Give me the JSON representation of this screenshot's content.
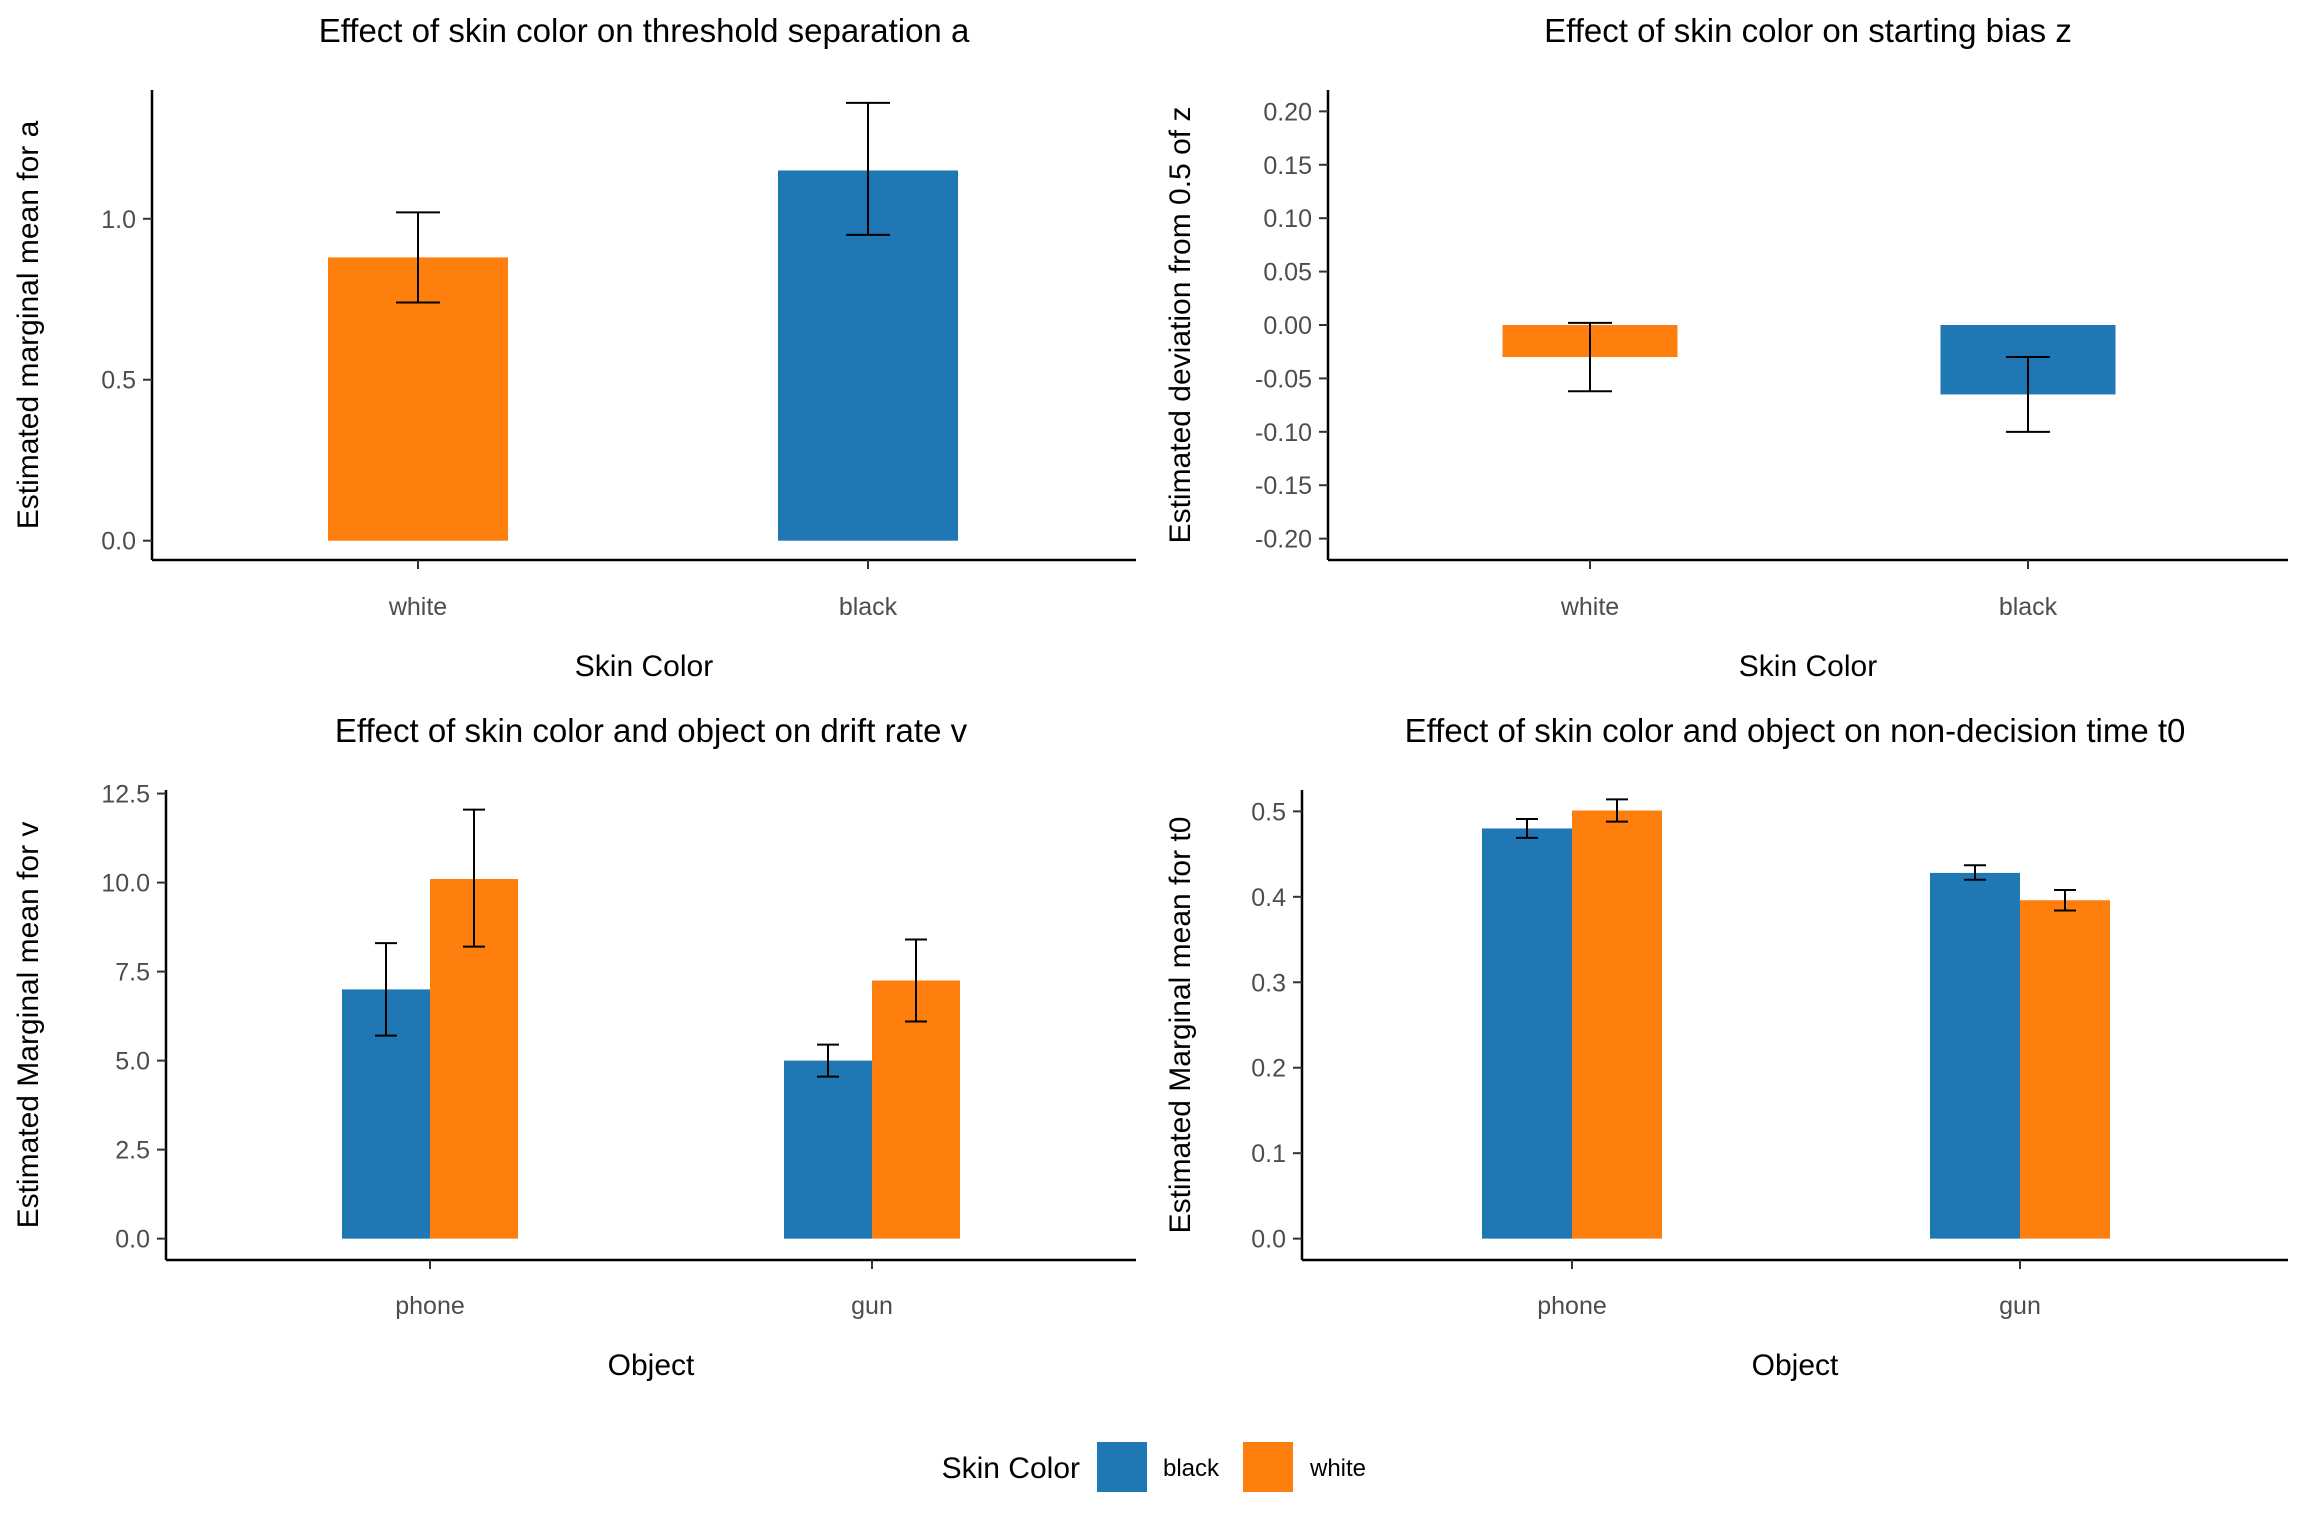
{
  "colors": {
    "black": "#1f77b4",
    "white": "#ff7f0e"
  },
  "legend": {
    "title": "Skin Color",
    "entries": [
      {
        "label": "black",
        "color": "#1f77b4"
      },
      {
        "label": "white",
        "color": "#ff7f0e"
      }
    ]
  },
  "chart_data": [
    {
      "type": "bar",
      "title": "Effect of skin color on threshold separation a",
      "xlabel": "Skin Color",
      "ylabel": "Estimated marginal mean for a",
      "ylim": [
        -0.06,
        1.4
      ],
      "yticks": [
        0.0,
        0.5,
        1.0
      ],
      "ytick_labels": [
        "0.0",
        "0.5",
        "1.0"
      ],
      "categories": [
        "white",
        "black"
      ],
      "series": [
        {
          "values": [
            0.88,
            1.15
          ],
          "error_low": [
            0.74,
            0.95
          ],
          "error_high": [
            1.02,
            1.36
          ],
          "colors": [
            "#ff7f0e",
            "#1f77b4"
          ]
        }
      ],
      "grid": false
    },
    {
      "type": "bar",
      "title": "Effect of skin color on starting bias z",
      "xlabel": "Skin Color",
      "ylabel": "Estimated deviation from 0.5 of z",
      "ylim": [
        -0.22,
        0.22
      ],
      "yticks": [
        -0.2,
        -0.15,
        -0.1,
        -0.05,
        0.0,
        0.05,
        0.1,
        0.15,
        0.2
      ],
      "ytick_labels": [
        "-0.20",
        "-0.15",
        "-0.10",
        "-0.05",
        "0.00",
        "0.05",
        "0.10",
        "0.15",
        "0.20"
      ],
      "categories": [
        "white",
        "black"
      ],
      "series": [
        {
          "values": [
            -0.03,
            -0.065
          ],
          "error_low": [
            -0.062,
            -0.1
          ],
          "error_high": [
            0.002,
            -0.03
          ],
          "colors": [
            "#ff7f0e",
            "#1f77b4"
          ]
        }
      ],
      "grid": false
    },
    {
      "type": "bar",
      "title": "Effect of skin color and object on drift rate v",
      "xlabel": "Object",
      "ylabel": "Estimated Marginal mean for v",
      "ylim": [
        -0.6,
        12.6
      ],
      "yticks": [
        0.0,
        2.5,
        5.0,
        7.5,
        10.0,
        12.5
      ],
      "ytick_labels": [
        "0.0",
        "2.5",
        "5.0",
        "7.5",
        "10.0",
        "12.5"
      ],
      "categories": [
        "phone",
        "gun"
      ],
      "series": [
        {
          "name": "black",
          "values": [
            7.0,
            5.0
          ],
          "error_low": [
            5.7,
            4.55
          ],
          "error_high": [
            8.3,
            5.45
          ]
        },
        {
          "name": "white",
          "values": [
            10.1,
            7.25
          ],
          "error_low": [
            8.2,
            6.1
          ],
          "error_high": [
            12.05,
            8.4
          ]
        }
      ],
      "grid": false,
      "legend": "bottom"
    },
    {
      "type": "bar",
      "title": "Effect of skin color and object on non-decision time t0",
      "xlabel": "Object",
      "ylabel": "Estimated Marginal mean for t0",
      "ylim": [
        -0.025,
        0.525
      ],
      "yticks": [
        0.0,
        0.1,
        0.2,
        0.3,
        0.4,
        0.5
      ],
      "ytick_labels": [
        "0.0",
        "0.1",
        "0.2",
        "0.3",
        "0.4",
        "0.5"
      ],
      "categories": [
        "phone",
        "gun"
      ],
      "series": [
        {
          "name": "black",
          "values": [
            0.48,
            0.428
          ],
          "error_low": [
            0.469,
            0.42
          ],
          "error_high": [
            0.491,
            0.437
          ]
        },
        {
          "name": "white",
          "values": [
            0.501,
            0.396
          ],
          "error_low": [
            0.488,
            0.384
          ],
          "error_high": [
            0.514,
            0.408
          ]
        }
      ],
      "grid": false,
      "legend": "bottom"
    }
  ]
}
